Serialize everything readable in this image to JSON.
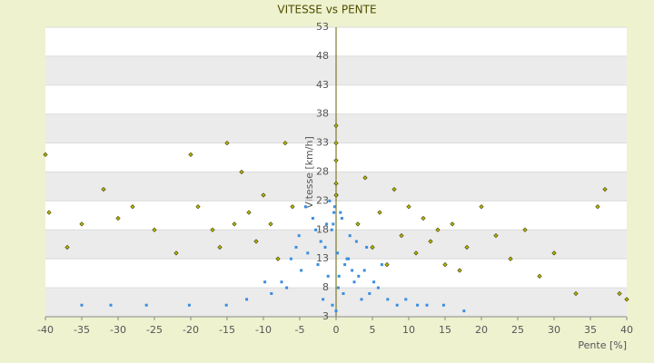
{
  "chart_data": {
    "type": "scatter",
    "title": "VITESSE vs PENTE",
    "x_label": "Pente [%]",
    "y_label": "Vitesse [km/h]",
    "xlim": [
      -40,
      40
    ],
    "xticks": [
      -40,
      -35,
      -30,
      -25,
      -20,
      -15,
      -10,
      -5,
      0,
      5,
      10,
      15,
      20,
      25,
      30,
      35,
      40
    ],
    "ylim": [
      3,
      53
    ],
    "yticks": [
      3,
      8,
      13,
      18,
      23,
      28,
      33,
      38,
      43,
      48,
      53
    ],
    "grid": true,
    "series": [
      {
        "color": "#3b8ee0",
        "x": [
          -0.5,
          0.3,
          1.2,
          -1.5,
          2.5,
          -2.8,
          0.8,
          -0.2,
          3.5,
          -3.9,
          4.6,
          -4.8,
          1.9,
          -1.1,
          5.8,
          -6.2,
          7.1,
          -7.5,
          0.1,
          -0.4,
          2.2,
          -2.1,
          8.4,
          -8.9,
          9.6,
          -9.8,
          11.2,
          12.5,
          -12.3,
          14.8,
          -15.1,
          17.6,
          -20.2,
          -26.1,
          -31.0,
          -35.0,
          0.6,
          -0.9,
          1.5,
          -1.8,
          3.1,
          -3.2,
          4.2,
          -5.1,
          6.3,
          -6.8,
          0.2,
          0.0,
          -0.6,
          1.0,
          2.8,
          -2.5,
          3.9,
          -4.2,
          5.2,
          -5.5,
          0.4,
          -0.3,
          1.7,
          -1.3
        ],
        "values": [
          5,
          8,
          12,
          15,
          9,
          18,
          20,
          22,
          6,
          14,
          7,
          11,
          17,
          10,
          8,
          13,
          6,
          9,
          24,
          19,
          11,
          16,
          5,
          7,
          6,
          9,
          5,
          5,
          6,
          5,
          5,
          4,
          5,
          5,
          5,
          5,
          21,
          23,
          13,
          6,
          10,
          20,
          15,
          17,
          12,
          8,
          14,
          4,
          18,
          7,
          16,
          12,
          11,
          22,
          9,
          15,
          10,
          21,
          13,
          19
        ]
      },
      {
        "color": "#b5b800",
        "x": [
          -40,
          -39.5,
          -37,
          -35,
          -32,
          -30,
          -28,
          -25,
          -22,
          -20,
          -19,
          -17,
          -16,
          -15,
          -14,
          -13,
          -12,
          -11,
          -10,
          -9,
          -8,
          -7,
          -6,
          0,
          0,
          0,
          0,
          0,
          3,
          4,
          5,
          6,
          7,
          8,
          9,
          10,
          11,
          12,
          13,
          14,
          15,
          16,
          17,
          18,
          20,
          22,
          24,
          26,
          28,
          30,
          33,
          36,
          37,
          39,
          40
        ],
        "values": [
          31,
          21,
          15,
          19,
          25,
          20,
          22,
          18,
          14,
          31,
          22,
          18,
          15,
          33,
          19,
          28,
          21,
          16,
          24,
          19,
          13,
          33,
          22,
          30,
          36,
          26,
          33,
          24,
          19,
          27,
          15,
          21,
          12,
          25,
          17,
          22,
          14,
          20,
          16,
          18,
          12,
          19,
          11,
          15,
          22,
          17,
          13,
          18,
          10,
          14,
          7,
          22,
          25,
          7,
          6
        ]
      }
    ]
  }
}
